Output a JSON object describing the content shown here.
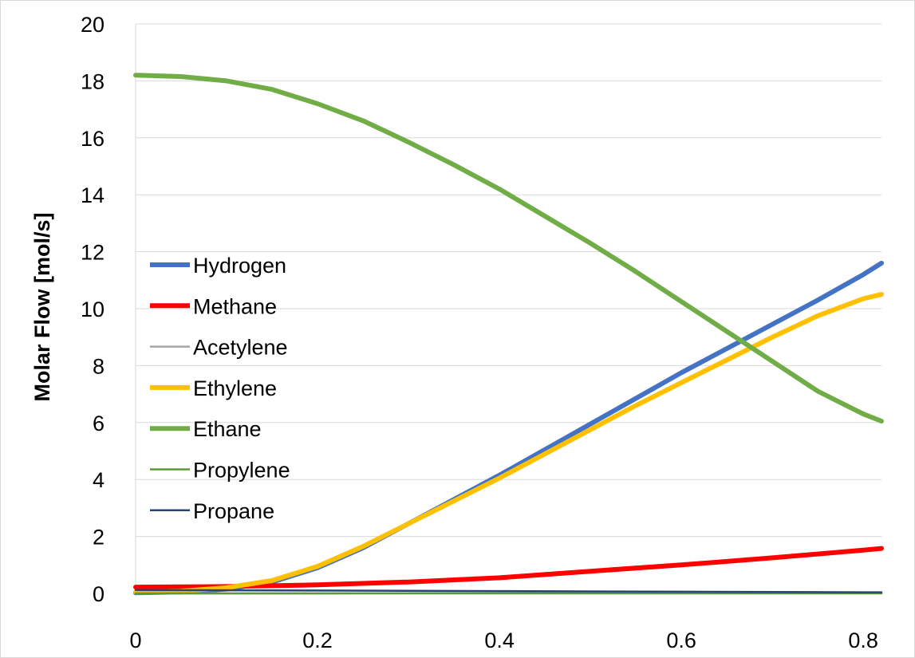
{
  "chart_data": {
    "type": "line",
    "title": "",
    "xlabel": "",
    "ylabel": "Molar Flow [mol/s]",
    "xlim": [
      0,
      0.82
    ],
    "ylim": [
      0,
      20
    ],
    "x_ticks": [
      0,
      0.2,
      0.4,
      0.6,
      0.8
    ],
    "x_tick_labels": [
      "0",
      "0.2",
      "0.4",
      "0.6",
      "0.8"
    ],
    "y_ticks": [
      0,
      2,
      4,
      6,
      8,
      10,
      12,
      14,
      16,
      18,
      20
    ],
    "y_tick_labels": [
      "0",
      "2",
      "4",
      "6",
      "8",
      "10",
      "12",
      "14",
      "16",
      "18",
      "20"
    ],
    "grid": "horizontal",
    "legend_position": "left",
    "series": [
      {
        "name": "Hydrogen",
        "color": "#4472C4",
        "width": "thick",
        "x": [
          0,
          0.05,
          0.1,
          0.15,
          0.2,
          0.25,
          0.3,
          0.35,
          0.4,
          0.45,
          0.5,
          0.55,
          0.6,
          0.65,
          0.7,
          0.75,
          0.8,
          0.82
        ],
        "y": [
          0.02,
          0.05,
          0.15,
          0.4,
          0.9,
          1.6,
          2.45,
          3.3,
          4.15,
          5.05,
          5.95,
          6.85,
          7.75,
          8.6,
          9.45,
          10.3,
          11.2,
          11.6
        ]
      },
      {
        "name": "Methane",
        "color": "#FF0000",
        "width": "thick",
        "x": [
          0,
          0.1,
          0.2,
          0.3,
          0.4,
          0.5,
          0.6,
          0.7,
          0.8,
          0.82
        ],
        "y": [
          0.22,
          0.24,
          0.3,
          0.4,
          0.55,
          0.78,
          1.0,
          1.25,
          1.52,
          1.58
        ]
      },
      {
        "name": "Acetylene",
        "color": "#A5A5A5",
        "width": "thin",
        "x": [
          0,
          0.2,
          0.4,
          0.6,
          0.8,
          0.82
        ],
        "y": [
          0.0,
          0.0,
          0.01,
          0.01,
          0.01,
          0.01
        ]
      },
      {
        "name": "Ethylene",
        "color": "#FFC000",
        "width": "thick",
        "x": [
          0,
          0.05,
          0.1,
          0.15,
          0.2,
          0.25,
          0.3,
          0.35,
          0.4,
          0.45,
          0.5,
          0.55,
          0.6,
          0.65,
          0.7,
          0.75,
          0.8,
          0.82
        ],
        "y": [
          0.05,
          0.08,
          0.2,
          0.45,
          0.95,
          1.65,
          2.45,
          3.25,
          4.05,
          4.9,
          5.75,
          6.6,
          7.4,
          8.2,
          9.0,
          9.75,
          10.35,
          10.5
        ]
      },
      {
        "name": "Ethane",
        "color": "#70AD47",
        "width": "thick",
        "x": [
          0,
          0.05,
          0.1,
          0.15,
          0.2,
          0.25,
          0.3,
          0.35,
          0.4,
          0.45,
          0.5,
          0.55,
          0.6,
          0.65,
          0.7,
          0.75,
          0.8,
          0.82
        ],
        "y": [
          18.2,
          18.15,
          18.0,
          17.7,
          17.2,
          16.6,
          15.85,
          15.05,
          14.2,
          13.25,
          12.3,
          11.3,
          10.25,
          9.2,
          8.15,
          7.1,
          6.3,
          6.05
        ]
      },
      {
        "name": "Propylene",
        "color": "#5B9B35",
        "width": "thin",
        "x": [
          0,
          0.2,
          0.4,
          0.6,
          0.8,
          0.82
        ],
        "y": [
          0.0,
          0.0,
          0.0,
          0.0,
          0.0,
          0.0
        ]
      },
      {
        "name": "Propane",
        "color": "#264478",
        "width": "thin",
        "x": [
          0,
          0.2,
          0.4,
          0.6,
          0.8,
          0.82
        ],
        "y": [
          0.12,
          0.1,
          0.08,
          0.06,
          0.04,
          0.04
        ]
      }
    ]
  }
}
